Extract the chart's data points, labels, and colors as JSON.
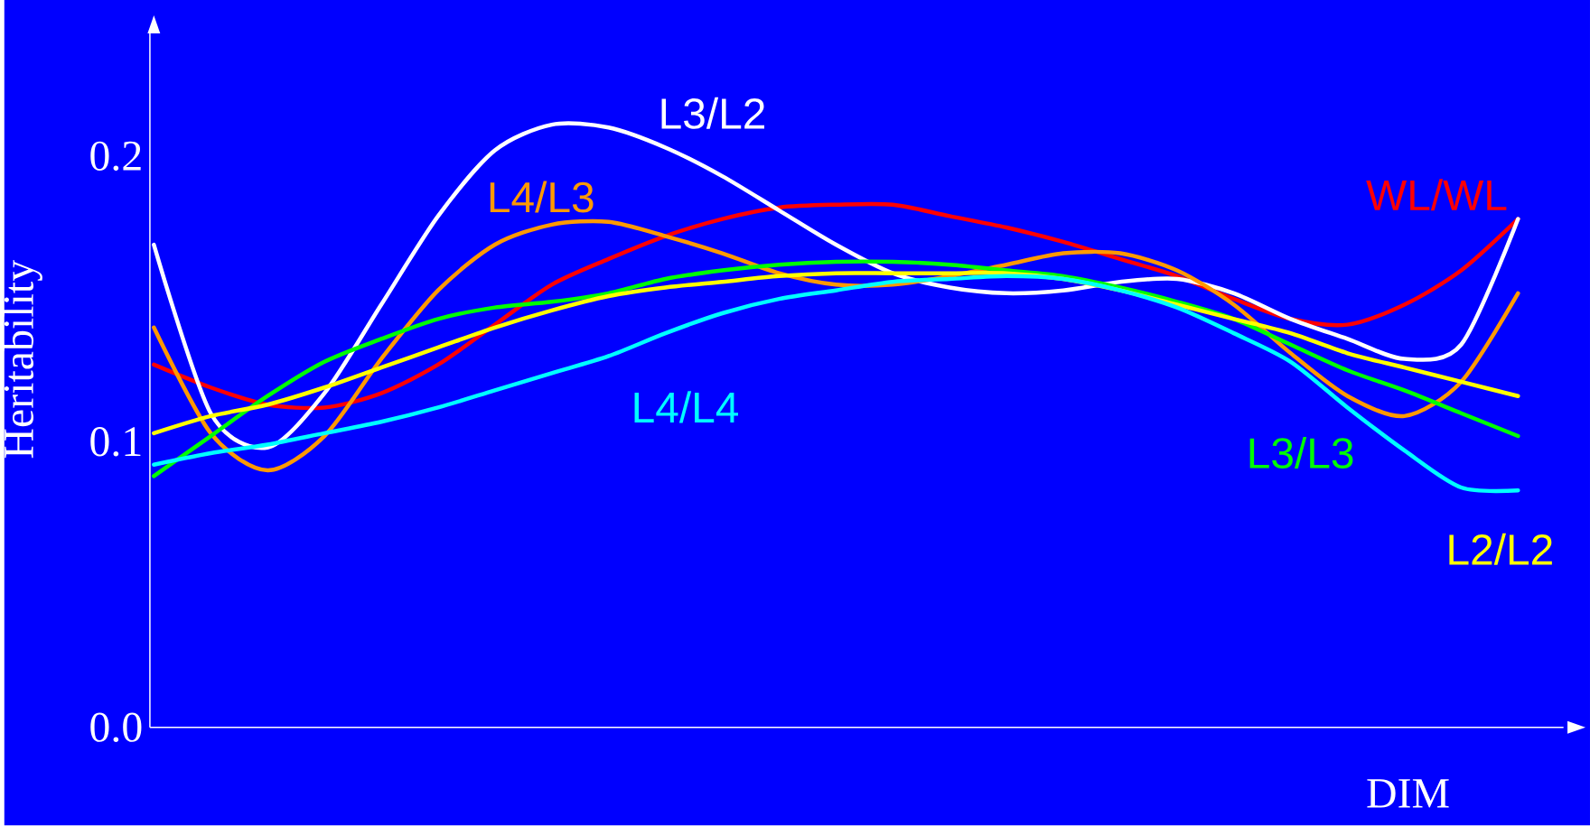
{
  "chart_data": {
    "type": "line",
    "xlabel": "DIM",
    "ylabel": "Heritability",
    "categories": [
      null,
      null,
      null,
      null,
      null,
      null,
      null,
      null,
      null,
      null,
      null,
      null,
      null,
      null,
      null,
      null,
      null,
      null,
      null,
      null,
      null,
      null,
      null,
      null,
      null
    ],
    "series": [
      {
        "name": "WL/WL",
        "color": "#ff0000",
        "values": [
          0.127,
          0.119,
          0.113,
          0.112,
          0.117,
          0.127,
          0.141,
          0.155,
          0.164,
          0.172,
          0.178,
          0.182,
          0.183,
          0.183,
          0.179,
          0.175,
          0.17,
          0.164,
          0.158,
          0.15,
          0.143,
          0.141,
          0.148,
          0.16,
          0.178
        ]
      },
      {
        "name": "L3/L2",
        "color": "#ffffff",
        "values": [
          0.169,
          0.11,
          0.098,
          0.117,
          0.148,
          0.179,
          0.202,
          0.211,
          0.21,
          0.203,
          0.193,
          0.181,
          0.169,
          0.159,
          0.154,
          0.152,
          0.153,
          0.156,
          0.157,
          0.152,
          0.143,
          0.136,
          0.129,
          0.134,
          0.178
        ]
      },
      {
        "name": "L4/L3",
        "color": "#ff9900",
        "values": [
          0.14,
          0.103,
          0.09,
          0.102,
          0.129,
          0.153,
          0.169,
          0.176,
          0.177,
          0.172,
          0.166,
          0.159,
          0.155,
          0.155,
          0.158,
          0.162,
          0.166,
          0.166,
          0.16,
          0.148,
          0.131,
          0.116,
          0.109,
          0.121,
          0.152
        ]
      },
      {
        "name": "L3/L3",
        "color": "#00ff00",
        "values": [
          0.088,
          0.102,
          0.116,
          0.128,
          0.136,
          0.143,
          0.147,
          0.149,
          0.152,
          0.157,
          0.16,
          0.162,
          0.163,
          0.163,
          0.162,
          0.16,
          0.158,
          0.154,
          0.149,
          0.143,
          0.134,
          0.125,
          0.118,
          0.11,
          0.102
        ]
      },
      {
        "name": "L2/L2",
        "color": "#ffff00",
        "values": [
          0.103,
          0.109,
          0.113,
          0.119,
          0.126,
          0.133,
          0.14,
          0.146,
          0.151,
          0.154,
          0.156,
          0.158,
          0.159,
          0.159,
          0.159,
          0.159,
          0.157,
          0.153,
          0.148,
          0.143,
          0.138,
          0.131,
          0.126,
          0.121,
          0.116
        ]
      },
      {
        "name": "L4/L4",
        "color": "#00ffff",
        "values": [
          0.092,
          0.096,
          0.099,
          0.103,
          0.107,
          0.112,
          0.118,
          0.124,
          0.13,
          0.138,
          0.145,
          0.15,
          0.153,
          0.156,
          0.157,
          0.158,
          0.157,
          0.153,
          0.147,
          0.138,
          0.128,
          0.112,
          0.097,
          0.084,
          0.083
        ]
      }
    ],
    "ylim": [
      0,
      0.243
    ],
    "yticks": [
      {
        "value": 0,
        "label": "0.0"
      },
      0.1,
      0.2
    ],
    "tick_labels": "y",
    "grid": false,
    "legend": false,
    "marker": "none",
    "line_style": "solid"
  }
}
